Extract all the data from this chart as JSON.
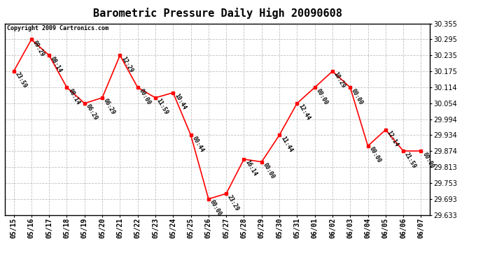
{
  "title": "Barometric Pressure Daily High 20090608",
  "copyright": "Copyright 2009 Cartronics.com",
  "line_color": "red",
  "marker_color": "red",
  "bg_color": "white",
  "grid_color": "#c0c0c0",
  "dates": [
    "05/15",
    "05/16",
    "05/17",
    "05/18",
    "05/19",
    "05/20",
    "05/21",
    "05/22",
    "05/23",
    "05/24",
    "05/25",
    "05/26",
    "05/27",
    "05/28",
    "05/29",
    "05/30",
    "05/31",
    "06/01",
    "06/02",
    "06/03",
    "06/04",
    "06/05",
    "06/06",
    "06/07"
  ],
  "values": [
    30.175,
    30.295,
    30.235,
    30.114,
    30.054,
    30.075,
    30.235,
    30.114,
    30.075,
    30.094,
    29.934,
    29.693,
    29.713,
    29.843,
    29.833,
    29.934,
    30.054,
    30.114,
    30.175,
    30.114,
    29.893,
    29.954,
    29.874,
    29.874
  ],
  "annotations": [
    "23:59",
    "09:29",
    "08:14",
    "08:14",
    "06:29",
    "06:29",
    "12:29",
    "00:00",
    "11:59",
    "10:44",
    "00:44",
    "00:00",
    "23:29",
    "16:14",
    "00:00",
    "11:44",
    "12:44",
    "00:00",
    "10:29",
    "00:00",
    "00:00",
    "12:14",
    "21:59",
    "00:00"
  ],
  "ylim_min": 29.633,
  "ylim_max": 30.355,
  "yticks": [
    29.633,
    29.693,
    29.753,
    29.813,
    29.874,
    29.934,
    29.994,
    30.054,
    30.114,
    30.175,
    30.235,
    30.295,
    30.355
  ],
  "title_fontsize": 11,
  "annotation_fontsize": 6,
  "copyright_fontsize": 6,
  "tick_fontsize": 7
}
